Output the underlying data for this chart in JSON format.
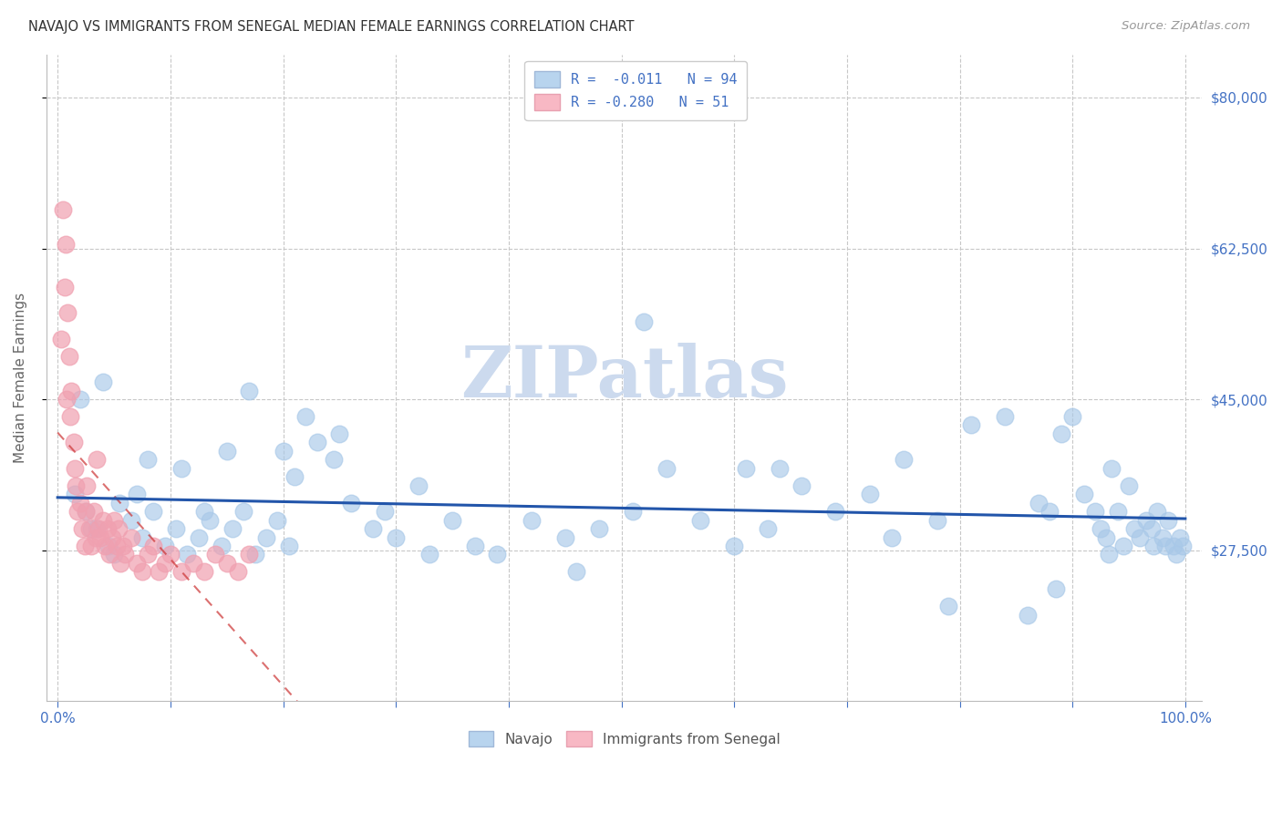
{
  "title": "NAVAJO VS IMMIGRANTS FROM SENEGAL MEDIAN FEMALE EARNINGS CORRELATION CHART",
  "source": "Source: ZipAtlas.com",
  "ylabel": "Median Female Earnings",
  "watermark": "ZIPatlas",
  "legend_label_navajo": "R =  -0.011   N = 94",
  "legend_label_senegal": "R = -0.280   N = 51",
  "navajo_color": "#a8c8e8",
  "senegal_color": "#f0a0b0",
  "regression_navajo_color": "#2255aa",
  "regression_senegal_color": "#cc3333",
  "navajo_label": "Navajo",
  "senegal_label": "Immigrants from Senegal",
  "ytick_labels": [
    "$27,500",
    "$45,000",
    "$62,500",
    "$80,000"
  ],
  "ytick_values": [
    27500,
    45000,
    62500,
    80000
  ],
  "ymin": 10000,
  "ymax": 85000,
  "xmin": -1.0,
  "xmax": 101.5,
  "background_color": "#ffffff",
  "grid_color": "#c8c8c8",
  "title_color": "#333333",
  "axis_color": "#4472c4",
  "watermark_color": "#ccdaee",
  "navajo_x": [
    1.5,
    2.5,
    3.5,
    4.5,
    5.5,
    6.5,
    7.5,
    8.5,
    9.5,
    10.5,
    11.5,
    12.5,
    13.5,
    14.5,
    15.5,
    16.5,
    17.5,
    18.5,
    19.5,
    20.5,
    22.0,
    23.0,
    24.5,
    26.0,
    28.0,
    30.0,
    32.0,
    35.0,
    37.0,
    39.0,
    42.0,
    45.0,
    48.0,
    51.0,
    54.0,
    57.0,
    60.0,
    63.0,
    66.0,
    69.0,
    72.0,
    75.0,
    78.0,
    81.0,
    84.0,
    87.0,
    88.0,
    89.0,
    90.0,
    91.0,
    92.0,
    92.5,
    93.0,
    93.5,
    94.0,
    94.5,
    95.0,
    95.5,
    96.0,
    96.5,
    97.0,
    97.5,
    98.0,
    98.5,
    99.0,
    99.2,
    99.5,
    99.8,
    4.0,
    8.0,
    11.0,
    15.0,
    17.0,
    20.0,
    25.0,
    29.0,
    52.0,
    64.0,
    79.0,
    86.0,
    88.5,
    93.2,
    97.2,
    98.2,
    2.0,
    3.0,
    5.0,
    7.0,
    13.0,
    21.0,
    33.0,
    46.0,
    61.0,
    74.0
  ],
  "navajo_y": [
    34000,
    32000,
    30000,
    28000,
    33000,
    31000,
    29000,
    32000,
    28000,
    30000,
    27000,
    29000,
    31000,
    28000,
    30000,
    32000,
    27000,
    29000,
    31000,
    28000,
    43000,
    40000,
    38000,
    33000,
    30000,
    29000,
    35000,
    31000,
    28000,
    27000,
    31000,
    29000,
    30000,
    32000,
    37000,
    31000,
    28000,
    30000,
    35000,
    32000,
    34000,
    38000,
    31000,
    42000,
    43000,
    33000,
    32000,
    41000,
    43000,
    34000,
    32000,
    30000,
    29000,
    37000,
    32000,
    28000,
    35000,
    30000,
    29000,
    31000,
    30000,
    32000,
    29000,
    31000,
    28000,
    27000,
    29000,
    28000,
    47000,
    38000,
    37000,
    39000,
    46000,
    39000,
    41000,
    32000,
    54000,
    37000,
    21000,
    20000,
    23000,
    27000,
    28000,
    28000,
    45000,
    30000,
    27000,
    34000,
    32000,
    36000,
    27000,
    25000,
    37000,
    29000
  ],
  "senegal_x": [
    0.5,
    0.7,
    0.9,
    1.0,
    1.2,
    1.4,
    1.5,
    1.6,
    1.8,
    2.0,
    2.2,
    2.4,
    2.5,
    2.6,
    2.8,
    3.0,
    3.2,
    3.4,
    3.5,
    3.6,
    3.8,
    4.0,
    4.2,
    4.4,
    4.6,
    4.8,
    5.0,
    5.2,
    5.4,
    5.6,
    5.8,
    6.0,
    6.5,
    7.0,
    7.5,
    8.0,
    8.5,
    9.0,
    9.5,
    10.0,
    11.0,
    12.0,
    13.0,
    14.0,
    15.0,
    16.0,
    17.0,
    0.3,
    0.6,
    0.8,
    1.1
  ],
  "senegal_y": [
    67000,
    63000,
    55000,
    50000,
    46000,
    40000,
    37000,
    35000,
    32000,
    33000,
    30000,
    28000,
    32000,
    35000,
    30000,
    28000,
    32000,
    29000,
    38000,
    30000,
    29000,
    31000,
    28000,
    30000,
    27000,
    29000,
    31000,
    28000,
    30000,
    26000,
    28000,
    27000,
    29000,
    26000,
    25000,
    27000,
    28000,
    25000,
    26000,
    27000,
    25000,
    26000,
    25000,
    27000,
    26000,
    25000,
    27000,
    52000,
    58000,
    45000,
    43000
  ]
}
